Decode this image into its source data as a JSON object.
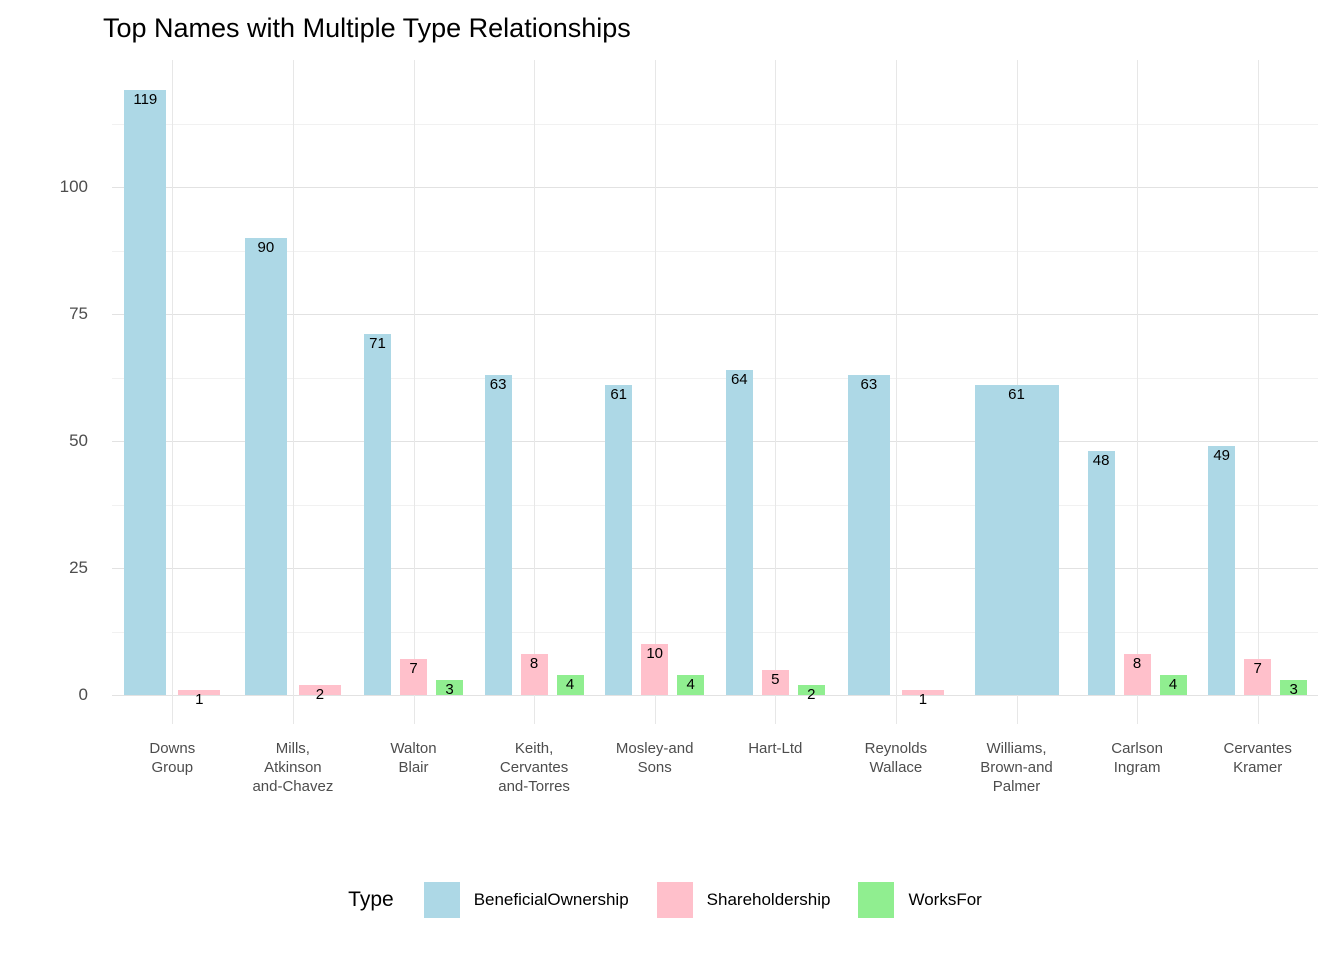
{
  "chart_data": {
    "type": "bar",
    "title": "Top Names with Multiple Type Relationships",
    "legend_title": "Type",
    "legend_position": "bottom",
    "grid": true,
    "categories": [
      "Downs\nGroup",
      "Mills,\nAtkinson\nand-Chavez",
      "Walton\nBlair",
      "Keith,\nCervantes\nand-Torres",
      "Mosley-and\nSons",
      "Hart-Ltd",
      "Reynolds\nWallace",
      "Williams,\nBrown-and\nPalmer",
      "Carlson\nIngram",
      "Cervantes\nKramer"
    ],
    "series": [
      {
        "name": "BeneficialOwnership",
        "color": "#add8e6",
        "values": [
          119,
          90,
          71,
          63,
          61,
          64,
          63,
          61,
          48,
          49
        ]
      },
      {
        "name": "Shareholdership",
        "color": "#ffc0cb",
        "values": [
          1,
          2,
          7,
          8,
          10,
          5,
          1,
          null,
          8,
          7
        ]
      },
      {
        "name": "WorksFor",
        "color": "#90ee90",
        "values": [
          null,
          null,
          3,
          4,
          4,
          2,
          null,
          null,
          4,
          3
        ]
      }
    ],
    "y_ticks": [
      0,
      25,
      50,
      75,
      100
    ],
    "y_minor_ticks": [
      12.5,
      37.5,
      62.5,
      87.5,
      112.5
    ],
    "ylim": [
      0,
      125
    ],
    "bar_value_labels_shown": true,
    "colors": {
      "grid_major": "#e2e2e2",
      "grid_minor": "#f1f1f1",
      "axis_text": "#4d4d4d",
      "title_text": "#000000",
      "background": "#ffffff"
    }
  }
}
